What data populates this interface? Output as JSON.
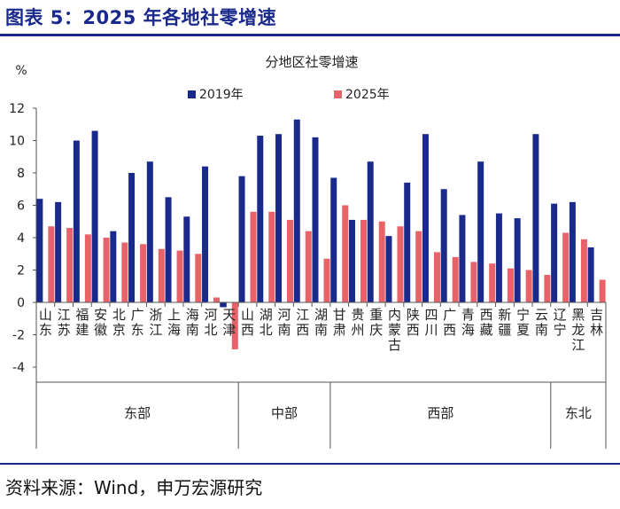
{
  "header": {
    "figure_title": "图表 5：2025 年各地社零增速"
  },
  "footer": {
    "source": "资料来源：Wind，申万宏源研究"
  },
  "colors": {
    "series_2019": "#1a2a8c",
    "series_2025": "#e8626a",
    "brand": "#1a2a8c"
  },
  "chart_data": {
    "type": "bar",
    "title": "分地区社零增速",
    "ylabel": "%",
    "ylim": [
      -4,
      12
    ],
    "yticks": [
      -4,
      -2,
      0,
      2,
      4,
      6,
      8,
      10,
      12
    ],
    "grid": false,
    "legend_position": "top",
    "categories": [
      "山东",
      "江苏",
      "福建",
      "安徽",
      "北京",
      "广东",
      "浙江",
      "上海",
      "海南",
      "河北",
      "天津",
      "山西",
      "湖北",
      "河南",
      "江西",
      "湖南",
      "甘肃",
      "贵州",
      "重庆",
      "内蒙古",
      "陕西",
      "四川",
      "广西",
      "青海",
      "西藏",
      "新疆",
      "宁夏",
      "云南",
      "辽宁",
      "黑龙江",
      "吉林"
    ],
    "series": [
      {
        "name": "2019年",
        "values": [
          6.4,
          6.2,
          10.0,
          10.6,
          4.4,
          8.0,
          8.7,
          6.5,
          5.3,
          8.4,
          -0.3,
          7.8,
          10.3,
          10.4,
          11.3,
          10.2,
          7.7,
          5.1,
          8.7,
          4.1,
          7.4,
          10.4,
          7.0,
          5.4,
          8.7,
          5.5,
          5.2,
          10.4,
          6.1,
          6.2,
          3.4
        ]
      },
      {
        "name": "2025年",
        "values": [
          4.7,
          4.6,
          4.2,
          4.0,
          3.7,
          3.6,
          3.3,
          3.2,
          3.0,
          0.3,
          -2.9,
          5.6,
          5.6,
          5.1,
          4.4,
          2.7,
          6.0,
          5.1,
          5.0,
          4.7,
          4.4,
          3.1,
          2.8,
          2.5,
          2.4,
          2.1,
          2.0,
          1.7,
          4.3,
          3.9,
          1.4
        ]
      }
    ],
    "groups": [
      {
        "name": "东部",
        "start": 0,
        "end": 10
      },
      {
        "name": "中部",
        "start": 11,
        "end": 15
      },
      {
        "name": "西部",
        "start": 16,
        "end": 27
      },
      {
        "name": "东北",
        "start": 28,
        "end": 30
      }
    ]
  }
}
